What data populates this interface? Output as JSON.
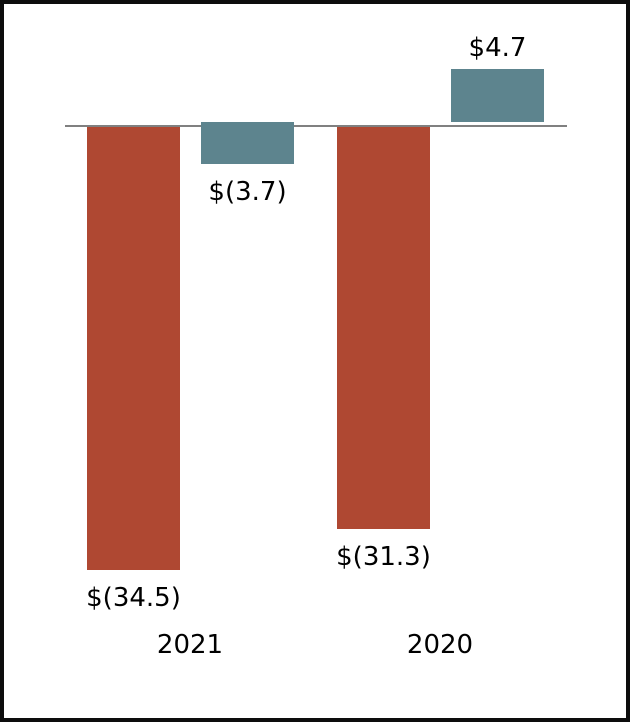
{
  "chart_data": {
    "type": "bar",
    "title": "",
    "xlabel": "",
    "ylabel": "",
    "grid": false,
    "legend": "none",
    "background_color": "#ffffff",
    "border_color": "#0d0d0d",
    "axis_color": "#808080",
    "text_color": "#000000",
    "categories": [
      "2021",
      "2020"
    ],
    "series": [
      {
        "name": "red-series",
        "color": "#AF4832",
        "values": [
          -34.5,
          -31.3
        ],
        "data_labels": [
          "$(34.5)",
          "$(31.3)"
        ]
      },
      {
        "name": "teal-series",
        "color": "#5D848E",
        "values": [
          -3.7,
          4.7
        ],
        "data_labels": [
          "$(3.7)",
          "$4.7"
        ]
      }
    ],
    "ylim": [
      -40,
      10
    ]
  }
}
